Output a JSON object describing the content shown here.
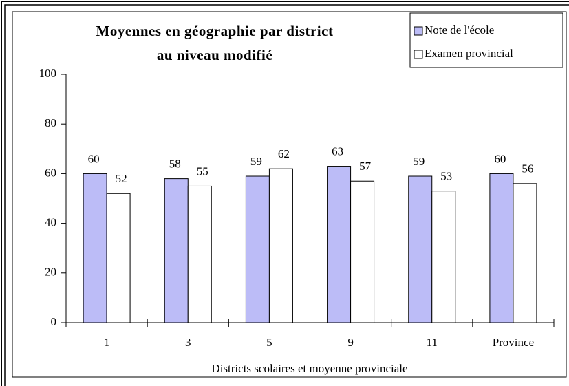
{
  "chart_data": {
    "type": "bar",
    "title": [
      "Moyennes en géographie par district",
      "au niveau modifié"
    ],
    "x_label": "Districts scolaires et moyenne provinciale",
    "categories": [
      "1",
      "3",
      "5",
      "9",
      "11",
      "Province"
    ],
    "series": [
      {
        "name": "Note de l'école",
        "color": "#bcbcf7",
        "values": [
          60,
          58,
          59,
          63,
          59,
          60
        ]
      },
      {
        "name": "Examen provincial",
        "color": "#ffffff",
        "values": [
          52,
          55,
          62,
          57,
          53,
          56
        ]
      }
    ],
    "ylim": [
      0,
      100
    ],
    "yticks": [
      0,
      20,
      40,
      60,
      80,
      100
    ],
    "legend": "top-right"
  }
}
